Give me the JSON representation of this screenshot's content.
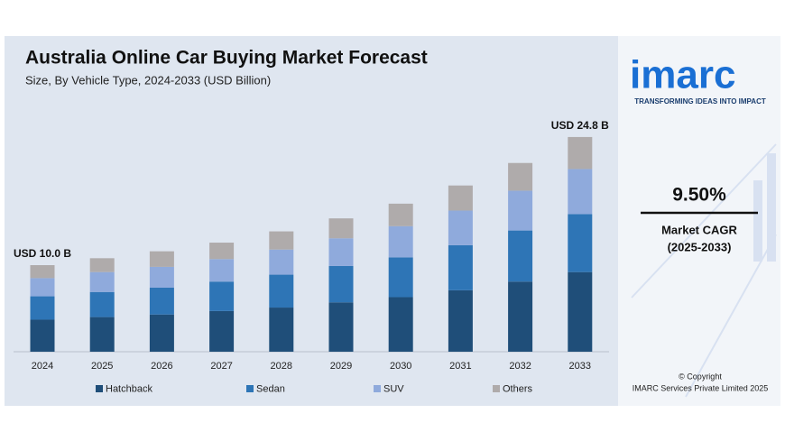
{
  "chart_data": {
    "type": "stacked-bar",
    "title": "Australia Online Car Buying Market Forecast",
    "subtitle": "Size, By Vehicle Type, 2024-2033 (USD Billion)",
    "categories": [
      "2024",
      "2025",
      "2026",
      "2027",
      "2028",
      "2029",
      "2030",
      "2031",
      "2032",
      "2033"
    ],
    "series": [
      {
        "name": "Hatchback",
        "color": "#1f4e79",
        "values": [
          3.7,
          4.0,
          4.3,
          4.7,
          5.1,
          5.7,
          6.3,
          7.1,
          8.1,
          9.2
        ]
      },
      {
        "name": "Sedan",
        "color": "#2e75b6",
        "values": [
          2.7,
          2.9,
          3.1,
          3.4,
          3.8,
          4.2,
          4.6,
          5.2,
          5.9,
          6.7
        ]
      },
      {
        "name": "SUV",
        "color": "#8faadc",
        "values": [
          2.1,
          2.3,
          2.4,
          2.6,
          2.9,
          3.2,
          3.6,
          4.0,
          4.6,
          5.2
        ]
      },
      {
        "name": "Others",
        "color": "#afabab",
        "values": [
          1.5,
          1.6,
          1.8,
          1.9,
          2.1,
          2.3,
          2.6,
          2.9,
          3.2,
          3.7
        ]
      }
    ],
    "annotations": [
      {
        "category": "2024",
        "text": "USD 10.0 B",
        "value": 10.0
      },
      {
        "category": "2033",
        "text": "USD 24.8 B",
        "value": 24.8
      }
    ],
    "legend": "bottom"
  },
  "sidebar": {
    "logo": "imarc",
    "tagline": "TRANSFORMING IDEAS INTO IMPACT",
    "cagr": "9.50%",
    "cagr_label": "Market CAGR",
    "cagr_period": "(2025-2033)",
    "copyright": "© Copyright",
    "company": "IMARC Services Private Limited 2025"
  }
}
